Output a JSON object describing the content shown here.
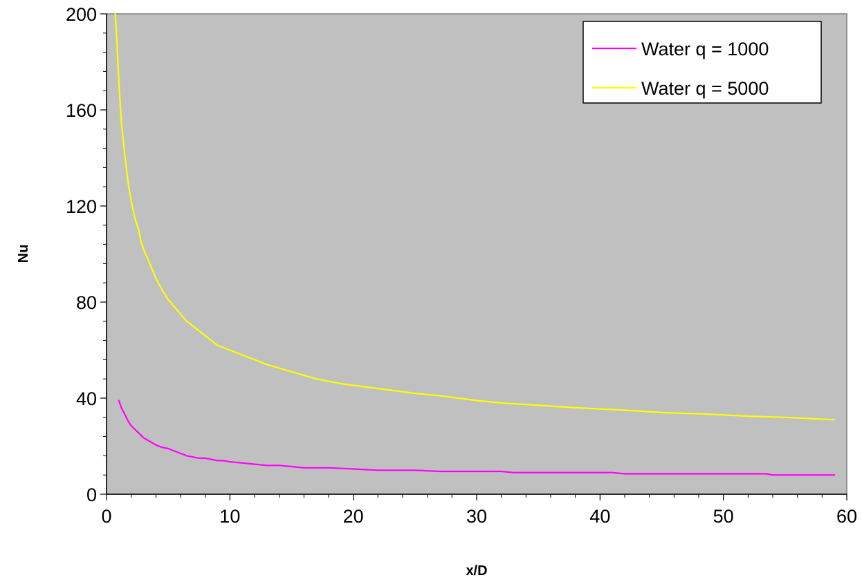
{
  "chart_data": {
    "type": "line",
    "title": "",
    "xlabel": "x/D",
    "ylabel": "Nu",
    "xlim": [
      0,
      60
    ],
    "ylim": [
      0,
      200
    ],
    "x_ticks": [
      0,
      10,
      20,
      30,
      40,
      50,
      60
    ],
    "y_ticks": [
      0,
      40,
      80,
      120,
      160,
      200
    ],
    "grid": false,
    "plot_background": "#c0c0c0",
    "legend_position": "top-right",
    "series": [
      {
        "name": "Water q = 1000",
        "color": "#ff00ff",
        "x": [
          1.0,
          1.2,
          1.5,
          1.8,
          2.0,
          2.5,
          3.0,
          3.5,
          4.0,
          4.5,
          5.0,
          5.5,
          6.0,
          6.5,
          7.0,
          7.5,
          8.0,
          8.5,
          9.0,
          9.5,
          10.0,
          11.0,
          12.0,
          13.0,
          14.0,
          15.0,
          16.0,
          18.0,
          20.0,
          22.0,
          25.0,
          27.0,
          30.0,
          32.0,
          33.0,
          35.0,
          38.0,
          41.0,
          42.0,
          45.0,
          50.0,
          53.5,
          54.0,
          57.0,
          59.0
        ],
        "y": [
          39,
          36,
          33,
          30,
          28.5,
          26,
          23.5,
          22,
          20.5,
          19.5,
          19,
          18,
          17,
          16,
          15.5,
          15,
          15,
          14.5,
          14,
          14,
          13.5,
          13,
          12.5,
          12,
          12,
          11.5,
          11,
          11,
          10.5,
          10,
          10,
          9.5,
          9.5,
          9.5,
          9,
          9,
          9,
          9,
          8.5,
          8.5,
          8.5,
          8.5,
          8,
          8,
          8
        ]
      },
      {
        "name": "Water q = 5000",
        "color": "#ffff00",
        "x": [
          0.7,
          0.8,
          0.9,
          1.0,
          1.1,
          1.2,
          1.5,
          1.8,
          2.0,
          2.3,
          2.6,
          2.8,
          3.0,
          3.5,
          4.0,
          4.5,
          5.0,
          5.5,
          6.0,
          6.5,
          7.0,
          8.0,
          9.0,
          10.0,
          11.0,
          12.0,
          13.0,
          15.0,
          17.0,
          19.0,
          22.0,
          25.0,
          27.0,
          30.0,
          32.0,
          35.0,
          38.0,
          40.0,
          42.0,
          45.0,
          48.0,
          50.0,
          52.0,
          55.0,
          59.0
        ],
        "y": [
          200,
          192,
          182,
          172,
          163,
          155,
          140,
          128,
          122,
          115,
          110,
          105,
          102,
          96,
          90,
          85,
          81,
          78,
          75,
          72,
          70,
          66,
          62,
          60,
          58,
          56,
          54,
          51,
          48,
          46,
          44,
          42,
          41,
          39,
          38,
          37,
          36,
          35.5,
          35,
          34,
          33.5,
          33,
          32.5,
          32,
          31
        ]
      }
    ]
  }
}
